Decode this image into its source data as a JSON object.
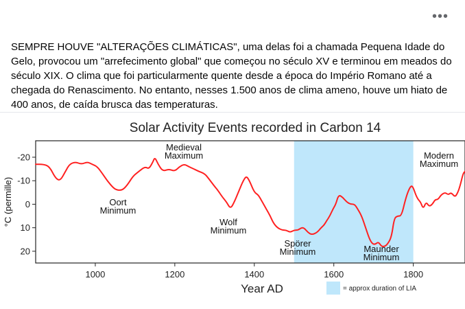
{
  "post": {
    "more_label": "•••",
    "text": "SEMPRE HOUVE \"ALTERAÇÕES CLIMÁTICAS\", uma delas foi a chamada Pequena Idade do Gelo, provocou um \"arrefecimento global\" que começou no século XV e terminou em meados do século XIX. O clima que foi particularmente quente desde a época do Império Romano até a chegada do Renascimento. No entanto, nesses 1.500 anos de clima ameno, houve um hiato de 400 anos, de caída brusca das temperaturas."
  },
  "chart_data": {
    "type": "line",
    "title": "Solar Activity Events recorded in Carbon 14",
    "xlabel": "Year AD",
    "ylabel": "°C (permille)",
    "xlim": [
      850,
      1930
    ],
    "ylim": [
      -27,
      25
    ],
    "y_inverted": true,
    "grid": false,
    "x_ticks": [
      "1000",
      "1200",
      "1400",
      "1600",
      "1800"
    ],
    "y_ticks": [
      "-20",
      "-10",
      "0",
      "10",
      "20"
    ],
    "line_color": "#ff2020",
    "shade_color": "#bfe7fb",
    "shaded_region": [
      1500,
      1800
    ],
    "legend": {
      "label": "= approx duration of LIA",
      "placement": "bottom-right"
    },
    "annotations": {
      "oort": [
        "Oort",
        "Minimum"
      ],
      "medieval": [
        "Medieval",
        "Maximum"
      ],
      "wolf": [
        "Wolf",
        "Minimum"
      ],
      "sporer": [
        "Spörer",
        "Minimum"
      ],
      "maunder": [
        "Maunder",
        "Minimum"
      ],
      "modern": [
        "Modern",
        "Maximum"
      ]
    },
    "series": [
      {
        "values": [
          [
            850,
            -17
          ],
          [
            870,
            -17
          ],
          [
            885,
            -16
          ],
          [
            900,
            -11
          ],
          [
            912,
            -10
          ],
          [
            925,
            -14
          ],
          [
            935,
            -17
          ],
          [
            950,
            -18
          ],
          [
            965,
            -17
          ],
          [
            980,
            -18
          ],
          [
            992,
            -17
          ],
          [
            1005,
            -16
          ],
          [
            1018,
            -13
          ],
          [
            1030,
            -10
          ],
          [
            1045,
            -7
          ],
          [
            1055,
            -6
          ],
          [
            1068,
            -6
          ],
          [
            1080,
            -8
          ],
          [
            1095,
            -12
          ],
          [
            1110,
            -14
          ],
          [
            1125,
            -16
          ],
          [
            1135,
            -15
          ],
          [
            1145,
            -18
          ],
          [
            1150,
            -20
          ],
          [
            1158,
            -17
          ],
          [
            1170,
            -14
          ],
          [
            1185,
            -15
          ],
          [
            1200,
            -14
          ],
          [
            1212,
            -16
          ],
          [
            1224,
            -17
          ],
          [
            1235,
            -16
          ],
          [
            1248,
            -15
          ],
          [
            1260,
            -14
          ],
          [
            1275,
            -13
          ],
          [
            1285,
            -11
          ],
          [
            1298,
            -8
          ],
          [
            1308,
            -6
          ],
          [
            1320,
            -3
          ],
          [
            1330,
            -1
          ],
          [
            1340,
            2
          ],
          [
            1350,
            -1
          ],
          [
            1362,
            -6
          ],
          [
            1372,
            -10
          ],
          [
            1380,
            -12
          ],
          [
            1388,
            -10
          ],
          [
            1400,
            -5
          ],
          [
            1410,
            -4
          ],
          [
            1420,
            -1
          ],
          [
            1430,
            2
          ],
          [
            1440,
            5
          ],
          [
            1448,
            8
          ],
          [
            1458,
            10
          ],
          [
            1470,
            11
          ],
          [
            1480,
            11
          ],
          [
            1490,
            12
          ],
          [
            1500,
            11
          ],
          [
            1510,
            11
          ],
          [
            1518,
            10
          ],
          [
            1525,
            10
          ],
          [
            1535,
            12
          ],
          [
            1545,
            13
          ],
          [
            1558,
            12
          ],
          [
            1568,
            10
          ],
          [
            1575,
            9
          ],
          [
            1582,
            7
          ],
          [
            1590,
            5
          ],
          [
            1598,
            2
          ],
          [
            1605,
            0
          ],
          [
            1612,
            -4
          ],
          [
            1622,
            -3
          ],
          [
            1632,
            -1
          ],
          [
            1642,
            0
          ],
          [
            1652,
            0
          ],
          [
            1660,
            2
          ],
          [
            1670,
            5
          ],
          [
            1680,
            10
          ],
          [
            1690,
            15
          ],
          [
            1698,
            17
          ],
          [
            1705,
            17
          ],
          [
            1712,
            16
          ],
          [
            1720,
            18
          ],
          [
            1728,
            18
          ],
          [
            1735,
            17
          ],
          [
            1745,
            14
          ],
          [
            1752,
            6
          ],
          [
            1760,
            5
          ],
          [
            1770,
            5
          ],
          [
            1780,
            -2
          ],
          [
            1788,
            -6
          ],
          [
            1795,
            -8
          ],
          [
            1800,
            -7
          ],
          [
            1806,
            -4
          ],
          [
            1812,
            -2
          ],
          [
            1818,
            -1
          ],
          [
            1825,
            2
          ],
          [
            1832,
            -1
          ],
          [
            1840,
            1
          ],
          [
            1848,
            0
          ],
          [
            1855,
            -2
          ],
          [
            1862,
            -2
          ],
          [
            1870,
            -4
          ],
          [
            1880,
            -5
          ],
          [
            1888,
            -4
          ],
          [
            1895,
            -5
          ],
          [
            1905,
            -3
          ],
          [
            1912,
            -5
          ],
          [
            1918,
            -8
          ],
          [
            1925,
            -13
          ],
          [
            1930,
            -14
          ]
        ]
      }
    ]
  }
}
